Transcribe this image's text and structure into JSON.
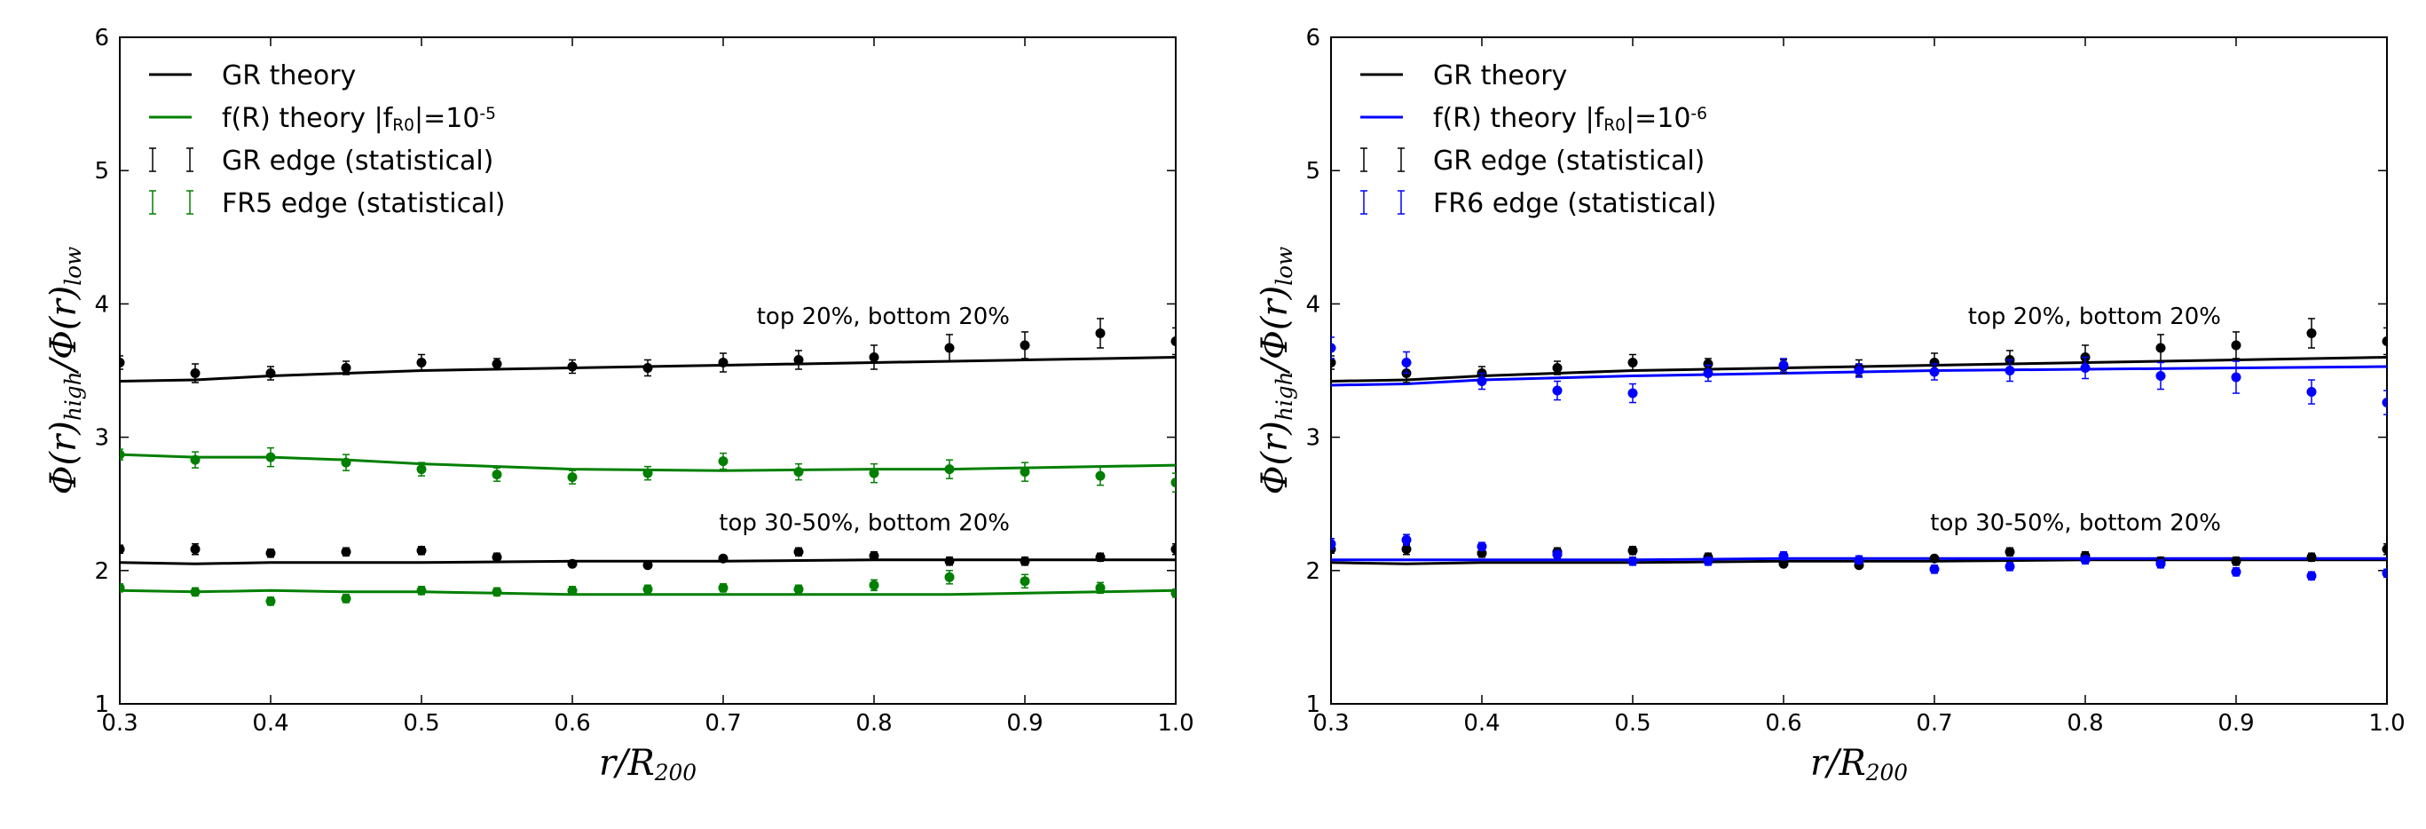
{
  "chart_data": [
    {
      "type": "line",
      "xlabel": "r/R_200",
      "ylabel": "Φ(r)_high/Φ(r)_low",
      "xlim": [
        0.3,
        1.0
      ],
      "ylim": [
        1,
        6
      ],
      "xticks": [
        "0.3",
        "0.4",
        "0.5",
        "0.6",
        "0.7",
        "0.8",
        "0.9",
        "1.0"
      ],
      "yticks": [
        "1",
        "2",
        "3",
        "4",
        "5",
        "6"
      ],
      "legend": [
        {
          "label": "GR theory",
          "kind": "line",
          "color": "#000000"
        },
        {
          "label": "f(R) theory |f_R0|=10^-5",
          "kind": "line",
          "color": "#007f00"
        },
        {
          "label": "GR edge (statistical)",
          "kind": "errorbar",
          "color": "#000000"
        },
        {
          "label": "FR5 edge (statistical)",
          "kind": "errorbar",
          "color": "#007f00"
        }
      ],
      "annotations": [
        {
          "text": "top 20%, bottom 20%",
          "x": 0.89,
          "y": 3.85
        },
        {
          "text": "top 30-50%, bottom 20%",
          "x": 0.89,
          "y": 2.3
        }
      ],
      "series": [
        {
          "name": "GR theory (top 20%)",
          "kind": "line",
          "color": "#000000",
          "x": [
            0.3,
            0.35,
            0.4,
            0.5,
            0.6,
            0.7,
            0.8,
            0.9,
            1.0
          ],
          "y": [
            3.42,
            3.43,
            3.46,
            3.5,
            3.52,
            3.54,
            3.56,
            3.58,
            3.6
          ]
        },
        {
          "name": "f(R) theory (top 20%)",
          "kind": "line",
          "color": "#007f00",
          "x": [
            0.3,
            0.35,
            0.4,
            0.45,
            0.5,
            0.55,
            0.6,
            0.7,
            0.8,
            0.85,
            0.9,
            1.0
          ],
          "y": [
            2.87,
            2.85,
            2.85,
            2.83,
            2.8,
            2.78,
            2.76,
            2.75,
            2.76,
            2.76,
            2.77,
            2.79
          ]
        },
        {
          "name": "GR theory (top 30-50%)",
          "kind": "line",
          "color": "#000000",
          "x": [
            0.3,
            0.35,
            0.4,
            0.5,
            0.6,
            0.7,
            0.8,
            0.9,
            1.0
          ],
          "y": [
            2.06,
            2.05,
            2.06,
            2.06,
            2.07,
            2.07,
            2.08,
            2.08,
            2.08
          ]
        },
        {
          "name": "f(R) theory (top 30-50%)",
          "kind": "line",
          "color": "#007f00",
          "x": [
            0.3,
            0.35,
            0.4,
            0.45,
            0.5,
            0.55,
            0.6,
            0.7,
            0.8,
            0.85,
            0.9,
            1.0
          ],
          "y": [
            1.85,
            1.84,
            1.85,
            1.84,
            1.84,
            1.83,
            1.82,
            1.82,
            1.82,
            1.82,
            1.83,
            1.85
          ]
        },
        {
          "name": "GR edge (top 20%)",
          "kind": "errorbar",
          "color": "#000000",
          "x": [
            0.3,
            0.35,
            0.4,
            0.45,
            0.5,
            0.55,
            0.6,
            0.65,
            0.7,
            0.75,
            0.8,
            0.85,
            0.9,
            0.95,
            1.0
          ],
          "y": [
            3.56,
            3.48,
            3.48,
            3.52,
            3.56,
            3.55,
            3.53,
            3.52,
            3.56,
            3.58,
            3.6,
            3.67,
            3.69,
            3.78,
            3.72
          ],
          "err": [
            0.05,
            0.07,
            0.05,
            0.05,
            0.06,
            0.04,
            0.05,
            0.06,
            0.07,
            0.07,
            0.09,
            0.1,
            0.1,
            0.11,
            0.1
          ]
        },
        {
          "name": "FR5 edge (top 20%)",
          "kind": "errorbar",
          "color": "#007f00",
          "x": [
            0.3,
            0.35,
            0.4,
            0.45,
            0.5,
            0.55,
            0.6,
            0.65,
            0.7,
            0.75,
            0.8,
            0.85,
            0.9,
            0.95,
            1.0
          ],
          "y": [
            2.87,
            2.83,
            2.85,
            2.81,
            2.76,
            2.72,
            2.7,
            2.73,
            2.82,
            2.74,
            2.73,
            2.76,
            2.74,
            2.71,
            2.66
          ],
          "err": [
            0.04,
            0.06,
            0.07,
            0.06,
            0.05,
            0.05,
            0.05,
            0.05,
            0.06,
            0.06,
            0.07,
            0.07,
            0.07,
            0.07,
            0.07
          ]
        },
        {
          "name": "GR edge (top 30-50%)",
          "kind": "errorbar",
          "color": "#000000",
          "x": [
            0.3,
            0.35,
            0.4,
            0.45,
            0.5,
            0.55,
            0.6,
            0.65,
            0.7,
            0.75,
            0.8,
            0.85,
            0.9,
            0.95,
            1.0
          ],
          "y": [
            2.16,
            2.16,
            2.13,
            2.14,
            2.15,
            2.1,
            2.05,
            2.04,
            2.09,
            2.14,
            2.11,
            2.07,
            2.07,
            2.1,
            2.16
          ],
          "err": [
            0.03,
            0.04,
            0.03,
            0.03,
            0.03,
            0.03,
            0.02,
            0.02,
            0.02,
            0.03,
            0.03,
            0.03,
            0.03,
            0.03,
            0.04
          ]
        },
        {
          "name": "FR5 edge (top 30-50%)",
          "kind": "errorbar",
          "color": "#007f00",
          "x": [
            0.3,
            0.35,
            0.4,
            0.45,
            0.5,
            0.55,
            0.6,
            0.65,
            0.7,
            0.75,
            0.8,
            0.85,
            0.9,
            0.95,
            1.0
          ],
          "y": [
            1.87,
            1.84,
            1.77,
            1.79,
            1.85,
            1.84,
            1.85,
            1.86,
            1.87,
            1.86,
            1.89,
            1.95,
            1.92,
            1.87,
            1.83
          ],
          "err": [
            0.03,
            0.03,
            0.03,
            0.03,
            0.03,
            0.03,
            0.03,
            0.03,
            0.03,
            0.03,
            0.04,
            0.05,
            0.05,
            0.04,
            0.03
          ]
        }
      ]
    },
    {
      "type": "line",
      "xlabel": "r/R_200",
      "ylabel": "Φ(r)_high/Φ(r)_low",
      "xlim": [
        0.3,
        1.0
      ],
      "ylim": [
        1,
        6
      ],
      "xticks": [
        "0.3",
        "0.4",
        "0.5",
        "0.6",
        "0.7",
        "0.8",
        "0.9",
        "1.0"
      ],
      "yticks": [
        "1",
        "2",
        "3",
        "4",
        "5",
        "6"
      ],
      "legend": [
        {
          "label": "GR theory",
          "kind": "line",
          "color": "#000000"
        },
        {
          "label": "f(R) theory |f_R0|=10^-6",
          "kind": "line",
          "color": "#0000ff"
        },
        {
          "label": "GR edge (statistical)",
          "kind": "errorbar",
          "color": "#000000"
        },
        {
          "label": "FR6 edge (statistical)",
          "kind": "errorbar",
          "color": "#0000ff"
        }
      ],
      "annotations": [
        {
          "text": "top 20%, bottom 20%",
          "x": 0.89,
          "y": 3.85
        },
        {
          "text": "top 30-50%, bottom 20%",
          "x": 0.89,
          "y": 2.3
        }
      ],
      "series": [
        {
          "name": "GR theory (top 20%)",
          "kind": "line",
          "color": "#000000",
          "x": [
            0.3,
            0.35,
            0.4,
            0.5,
            0.6,
            0.7,
            0.8,
            0.9,
            1.0
          ],
          "y": [
            3.42,
            3.43,
            3.46,
            3.5,
            3.52,
            3.54,
            3.56,
            3.58,
            3.6
          ]
        },
        {
          "name": "f(R) theory (top 20%)",
          "kind": "line",
          "color": "#0000ff",
          "x": [
            0.3,
            0.35,
            0.4,
            0.5,
            0.6,
            0.7,
            0.8,
            0.9,
            1.0
          ],
          "y": [
            3.39,
            3.4,
            3.43,
            3.46,
            3.48,
            3.5,
            3.51,
            3.52,
            3.53
          ]
        },
        {
          "name": "GR theory (top 30-50%)",
          "kind": "line",
          "color": "#000000",
          "x": [
            0.3,
            0.35,
            0.4,
            0.5,
            0.6,
            0.7,
            0.8,
            0.9,
            1.0
          ],
          "y": [
            2.06,
            2.05,
            2.06,
            2.06,
            2.07,
            2.07,
            2.08,
            2.08,
            2.08
          ]
        },
        {
          "name": "f(R) theory (top 30-50%)",
          "kind": "line",
          "color": "#0000ff",
          "x": [
            0.3,
            0.35,
            0.4,
            0.5,
            0.6,
            0.7,
            0.8,
            0.9,
            1.0
          ],
          "y": [
            2.08,
            2.08,
            2.08,
            2.08,
            2.09,
            2.09,
            2.09,
            2.09,
            2.09
          ]
        },
        {
          "name": "GR edge (top 20%)",
          "kind": "errorbar",
          "color": "#000000",
          "x": [
            0.3,
            0.35,
            0.4,
            0.45,
            0.5,
            0.55,
            0.6,
            0.65,
            0.7,
            0.75,
            0.8,
            0.85,
            0.9,
            0.95,
            1.0
          ],
          "y": [
            3.56,
            3.48,
            3.48,
            3.52,
            3.56,
            3.55,
            3.53,
            3.52,
            3.56,
            3.58,
            3.6,
            3.67,
            3.69,
            3.78,
            3.72
          ],
          "err": [
            0.05,
            0.07,
            0.05,
            0.05,
            0.06,
            0.04,
            0.05,
            0.06,
            0.07,
            0.07,
            0.09,
            0.1,
            0.1,
            0.11,
            0.1
          ]
        },
        {
          "name": "FR6 edge (top 20%)",
          "kind": "errorbar",
          "color": "#0000ff",
          "x": [
            0.3,
            0.35,
            0.4,
            0.45,
            0.5,
            0.55,
            0.6,
            0.65,
            0.7,
            0.75,
            0.8,
            0.85,
            0.9,
            0.95,
            1.0
          ],
          "y": [
            3.67,
            3.56,
            3.42,
            3.35,
            3.33,
            3.48,
            3.54,
            3.5,
            3.49,
            3.5,
            3.52,
            3.46,
            3.45,
            3.34,
            3.26
          ],
          "err": [
            0.08,
            0.08,
            0.06,
            0.07,
            0.07,
            0.06,
            0.05,
            0.05,
            0.06,
            0.08,
            0.08,
            0.1,
            0.12,
            0.09,
            0.09
          ]
        },
        {
          "name": "GR edge (top 30-50%)",
          "kind": "errorbar",
          "color": "#000000",
          "x": [
            0.3,
            0.35,
            0.4,
            0.45,
            0.5,
            0.55,
            0.6,
            0.65,
            0.7,
            0.75,
            0.8,
            0.85,
            0.9,
            0.95,
            1.0
          ],
          "y": [
            2.16,
            2.16,
            2.13,
            2.14,
            2.15,
            2.1,
            2.05,
            2.04,
            2.09,
            2.14,
            2.11,
            2.07,
            2.07,
            2.1,
            2.16
          ],
          "err": [
            0.03,
            0.04,
            0.03,
            0.03,
            0.03,
            0.03,
            0.02,
            0.02,
            0.02,
            0.03,
            0.03,
            0.03,
            0.03,
            0.03,
            0.04
          ]
        },
        {
          "name": "FR6 edge (top 30-50%)",
          "kind": "errorbar",
          "color": "#0000ff",
          "x": [
            0.3,
            0.35,
            0.4,
            0.45,
            0.5,
            0.55,
            0.6,
            0.65,
            0.7,
            0.75,
            0.8,
            0.85,
            0.9,
            0.95,
            1.0
          ],
          "y": [
            2.2,
            2.23,
            2.18,
            2.12,
            2.07,
            2.07,
            2.11,
            2.08,
            2.01,
            2.03,
            2.08,
            2.05,
            1.99,
            1.96,
            1.98
          ],
          "err": [
            0.04,
            0.04,
            0.03,
            0.03,
            0.03,
            0.03,
            0.03,
            0.03,
            0.03,
            0.03,
            0.03,
            0.03,
            0.03,
            0.03,
            0.03
          ]
        }
      ]
    }
  ]
}
